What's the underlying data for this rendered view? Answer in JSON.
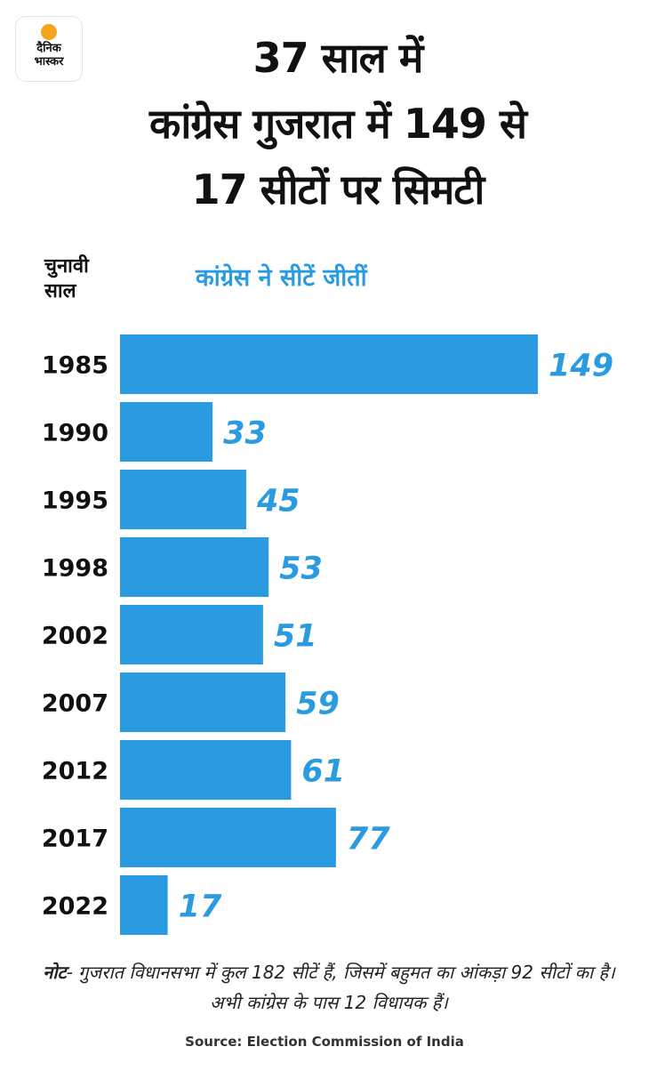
{
  "logo": {
    "text": "दैनिक\nभास्कर"
  },
  "title": {
    "lines": [
      "37 साल में",
      "कांग्रेस गुजरात में 149 से",
      "17 सीटों पर सिमटी"
    ]
  },
  "column_header": {
    "line1": "चुनावी",
    "line2": "साल"
  },
  "chart_data": {
    "type": "bar",
    "orientation": "horizontal",
    "title": "कांग्रेस ने सीटें जीतीं",
    "categories": [
      "1985",
      "1990",
      "1995",
      "1998",
      "2002",
      "2007",
      "2012",
      "2017",
      "2022"
    ],
    "values": [
      149,
      33,
      45,
      53,
      51,
      59,
      61,
      77,
      17
    ],
    "xlim": [
      0,
      149
    ],
    "grid": false,
    "bar_color": "#2a9be0",
    "label_color": "#2a9be0"
  },
  "note": {
    "label": "नोट",
    "text": "- गुजरात विधानसभा में कुल 182 सीटें हैं, जिसमें बहुमत का आंकड़ा 92 सीटों का है। अभी कांग्रेस के पास 12 विधायक हैं।"
  },
  "source": "Source: Election Commission of India"
}
